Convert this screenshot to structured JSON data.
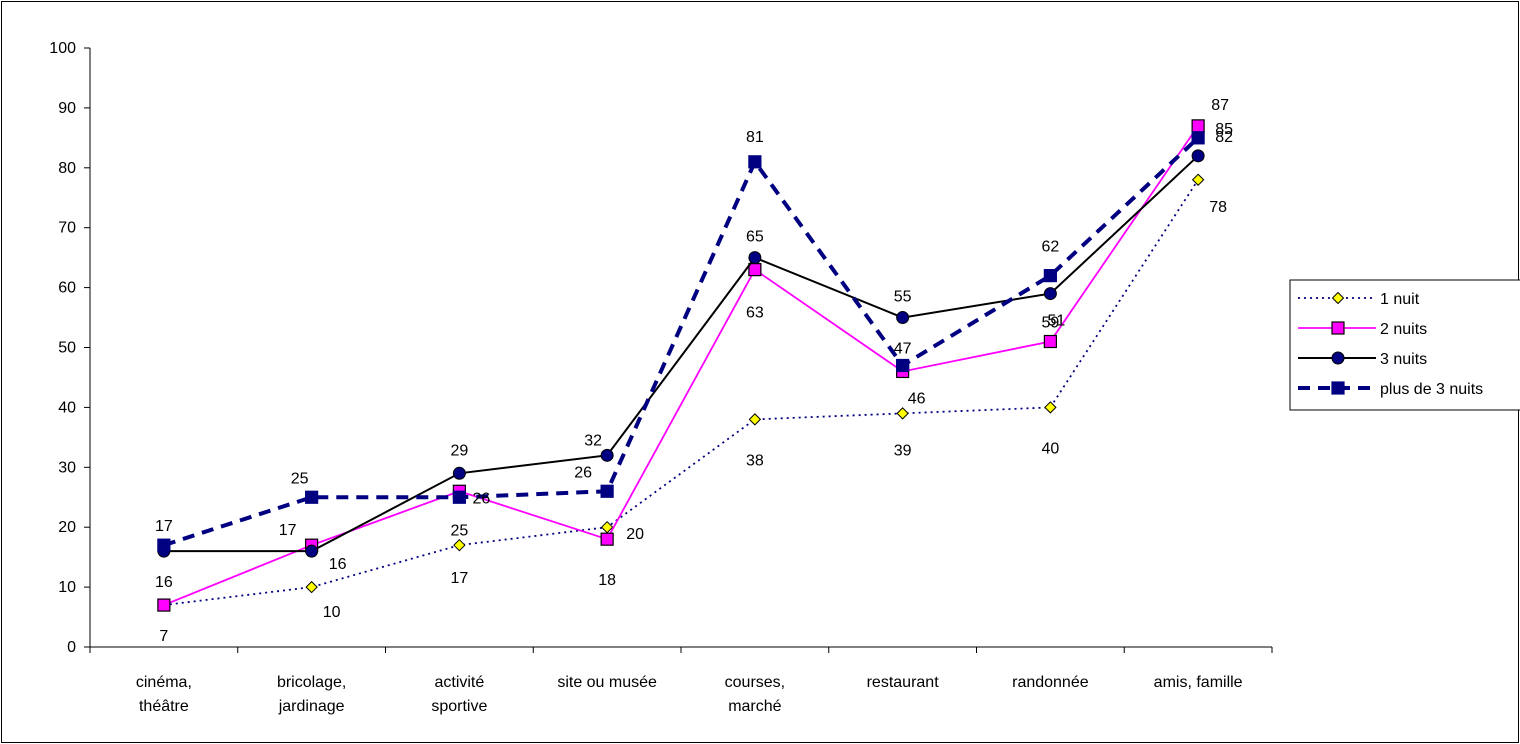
{
  "chart_data": {
    "type": "line",
    "categories": [
      [
        "cinéma,",
        "théâtre"
      ],
      [
        "bricolage,",
        "jardinage"
      ],
      [
        "activité",
        "sportive"
      ],
      [
        "site ou musée"
      ],
      [
        "courses,",
        "marché"
      ],
      [
        "restaurant"
      ],
      [
        "randonnée"
      ],
      [
        "amis, famille"
      ]
    ],
    "ylim": [
      0,
      100
    ],
    "yticks": [
      0,
      10,
      20,
      30,
      40,
      50,
      60,
      70,
      80,
      90,
      100
    ],
    "grid": false,
    "legend_position": "right",
    "series": [
      {
        "name": "1 nuit",
        "values": [
          7,
          10,
          17,
          20,
          38,
          39,
          40,
          78
        ],
        "color": "#000080",
        "marker": "diamond",
        "marker_fill": "#ffff00",
        "line_style": "dotted"
      },
      {
        "name": "2 nuits",
        "values": [
          7,
          17,
          26,
          18,
          63,
          46,
          51,
          87
        ],
        "color": "#ff00ff",
        "marker": "square",
        "marker_fill": "#ff00ff",
        "line_style": "solid"
      },
      {
        "name": "3 nuits",
        "values": [
          16,
          16,
          29,
          32,
          65,
          55,
          59,
          82
        ],
        "color": "#000000",
        "marker": "circle",
        "marker_fill": "#000080",
        "line_style": "solid"
      },
      {
        "name": "plus de 3 nuits",
        "values": [
          17,
          25,
          25,
          26,
          81,
          47,
          62,
          85
        ],
        "color": "#000080",
        "marker": "square",
        "marker_fill": "#000080",
        "line_style": "dashed"
      }
    ],
    "data_labels": [
      {
        "series": 0,
        "index": 0,
        "text": "7"
      },
      {
        "series": 0,
        "index": 1,
        "text": "10"
      },
      {
        "series": 0,
        "index": 2,
        "text": "17"
      },
      {
        "series": 0,
        "index": 3,
        "text": "20"
      },
      {
        "series": 0,
        "index": 4,
        "text": "38"
      },
      {
        "series": 0,
        "index": 5,
        "text": "39"
      },
      {
        "series": 0,
        "index": 6,
        "text": "40"
      },
      {
        "series": 0,
        "index": 7,
        "text": "78"
      },
      {
        "series": 1,
        "index": 1,
        "text": "17"
      },
      {
        "series": 1,
        "index": 2,
        "text": "26"
      },
      {
        "series": 1,
        "index": 3,
        "text": "18"
      },
      {
        "series": 1,
        "index": 4,
        "text": "63"
      },
      {
        "series": 1,
        "index": 5,
        "text": "46"
      },
      {
        "series": 1,
        "index": 6,
        "text": "51"
      },
      {
        "series": 1,
        "index": 7,
        "text": "87"
      },
      {
        "series": 2,
        "index": 0,
        "text": "16"
      },
      {
        "series": 2,
        "index": 1,
        "text": "16"
      },
      {
        "series": 2,
        "index": 2,
        "text": "29"
      },
      {
        "series": 2,
        "index": 3,
        "text": "32"
      },
      {
        "series": 2,
        "index": 4,
        "text": "65"
      },
      {
        "series": 2,
        "index": 5,
        "text": "55"
      },
      {
        "series": 2,
        "index": 6,
        "text": "59"
      },
      {
        "series": 2,
        "index": 7,
        "text": "82"
      },
      {
        "series": 3,
        "index": 0,
        "text": "17"
      },
      {
        "series": 3,
        "index": 1,
        "text": "25"
      },
      {
        "series": 3,
        "index": 2,
        "text": "25"
      },
      {
        "series": 3,
        "index": 3,
        "text": "26"
      },
      {
        "series": 3,
        "index": 4,
        "text": "81"
      },
      {
        "series": 3,
        "index": 5,
        "text": "47"
      },
      {
        "series": 3,
        "index": 6,
        "text": "62"
      },
      {
        "series": 3,
        "index": 7,
        "text": "85"
      }
    ]
  }
}
